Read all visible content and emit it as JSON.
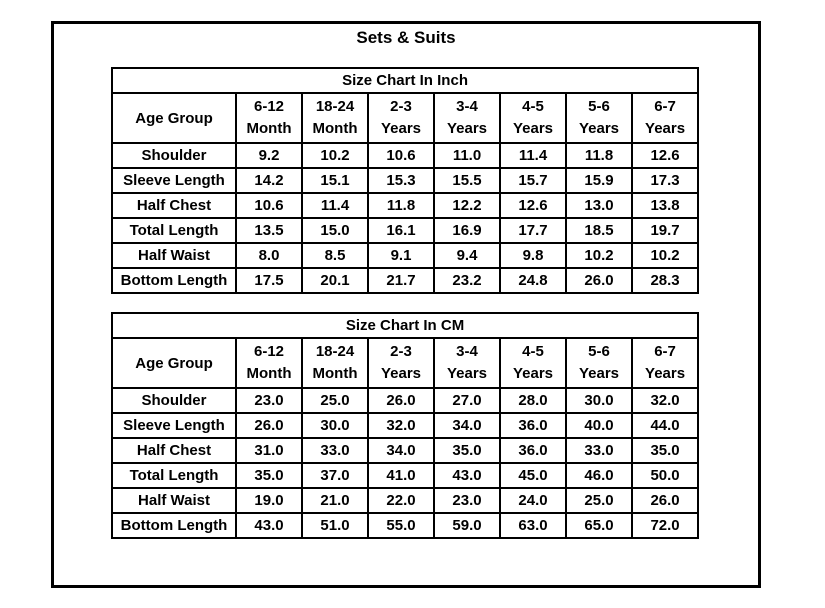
{
  "page_title": "Sets & Suits",
  "colors": {
    "background": "#ffffff",
    "border": "#000000",
    "text": "#000000"
  },
  "tables": [
    {
      "title": "Size Chart In Inch",
      "header_label": "Age Group",
      "columns": [
        "6-12\nMonth",
        "18-24\nMonth",
        "2-3\nYears",
        "3-4\nYears",
        "4-5\nYears",
        "5-6\nYears",
        "6-7\nYears"
      ],
      "rows": [
        {
          "label": "Shoulder",
          "values": [
            "9.2",
            "10.2",
            "10.6",
            "11.0",
            "11.4",
            "11.8",
            "12.6"
          ]
        },
        {
          "label": "Sleeve Length",
          "values": [
            "14.2",
            "15.1",
            "15.3",
            "15.5",
            "15.7",
            "15.9",
            "17.3"
          ]
        },
        {
          "label": "Half Chest",
          "values": [
            "10.6",
            "11.4",
            "11.8",
            "12.2",
            "12.6",
            "13.0",
            "13.8"
          ]
        },
        {
          "label": "Total Length",
          "values": [
            "13.5",
            "15.0",
            "16.1",
            "16.9",
            "17.7",
            "18.5",
            "19.7"
          ]
        },
        {
          "label": "Half Waist",
          "values": [
            "8.0",
            "8.5",
            "9.1",
            "9.4",
            "9.8",
            "10.2",
            "10.2"
          ]
        },
        {
          "label": "Bottom Length",
          "values": [
            "17.5",
            "20.1",
            "21.7",
            "23.2",
            "24.8",
            "26.0",
            "28.3"
          ]
        }
      ]
    },
    {
      "title": "Size Chart In CM",
      "header_label": "Age Group",
      "columns": [
        "6-12\nMonth",
        "18-24\nMonth",
        "2-3\nYears",
        "3-4\nYears",
        "4-5\nYears",
        "5-6\nYears",
        "6-7\nYears"
      ],
      "rows": [
        {
          "label": "Shoulder",
          "values": [
            "23.0",
            "25.0",
            "26.0",
            "27.0",
            "28.0",
            "30.0",
            "32.0"
          ]
        },
        {
          "label": "Sleeve Length",
          "values": [
            "26.0",
            "30.0",
            "32.0",
            "34.0",
            "36.0",
            "40.0",
            "44.0"
          ]
        },
        {
          "label": "Half Chest",
          "values": [
            "31.0",
            "33.0",
            "34.0",
            "35.0",
            "36.0",
            "33.0",
            "35.0"
          ]
        },
        {
          "label": "Total Length",
          "values": [
            "35.0",
            "37.0",
            "41.0",
            "43.0",
            "45.0",
            "46.0",
            "50.0"
          ]
        },
        {
          "label": "Half Waist",
          "values": [
            "19.0",
            "21.0",
            "22.0",
            "23.0",
            "24.0",
            "25.0",
            "26.0"
          ]
        },
        {
          "label": "Bottom Length",
          "values": [
            "43.0",
            "51.0",
            "55.0",
            "59.0",
            "63.0",
            "65.0",
            "72.0"
          ]
        }
      ]
    }
  ],
  "chart_data": [
    {
      "type": "table",
      "title": "Size Chart In Inch",
      "columns": [
        "Age Group",
        "6-12 Month",
        "18-24 Month",
        "2-3 Years",
        "3-4 Years",
        "4-5 Years",
        "5-6 Years",
        "6-7 Years"
      ],
      "rows": [
        [
          "Shoulder",
          9.2,
          10.2,
          10.6,
          11.0,
          11.4,
          11.8,
          12.6
        ],
        [
          "Sleeve Length",
          14.2,
          15.1,
          15.3,
          15.5,
          15.7,
          15.9,
          17.3
        ],
        [
          "Half Chest",
          10.6,
          11.4,
          11.8,
          12.2,
          12.6,
          13.0,
          13.8
        ],
        [
          "Total Length",
          13.5,
          15.0,
          16.1,
          16.9,
          17.7,
          18.5,
          19.7
        ],
        [
          "Half Waist",
          8.0,
          8.5,
          9.1,
          9.4,
          9.8,
          10.2,
          10.2
        ],
        [
          "Bottom Length",
          17.5,
          20.1,
          21.7,
          23.2,
          24.8,
          26.0,
          28.3
        ]
      ]
    },
    {
      "type": "table",
      "title": "Size Chart In CM",
      "columns": [
        "Age Group",
        "6-12 Month",
        "18-24 Month",
        "2-3 Years",
        "3-4 Years",
        "4-5 Years",
        "5-6 Years",
        "6-7 Years"
      ],
      "rows": [
        [
          "Shoulder",
          23.0,
          25.0,
          26.0,
          27.0,
          28.0,
          30.0,
          32.0
        ],
        [
          "Sleeve Length",
          26.0,
          30.0,
          32.0,
          34.0,
          36.0,
          40.0,
          44.0
        ],
        [
          "Half Chest",
          31.0,
          33.0,
          34.0,
          35.0,
          36.0,
          33.0,
          35.0
        ],
        [
          "Total Length",
          35.0,
          37.0,
          41.0,
          43.0,
          45.0,
          46.0,
          50.0
        ],
        [
          "Half Waist",
          19.0,
          21.0,
          22.0,
          23.0,
          24.0,
          25.0,
          26.0
        ],
        [
          "Bottom Length",
          43.0,
          51.0,
          55.0,
          59.0,
          63.0,
          65.0,
          72.0
        ]
      ]
    }
  ]
}
